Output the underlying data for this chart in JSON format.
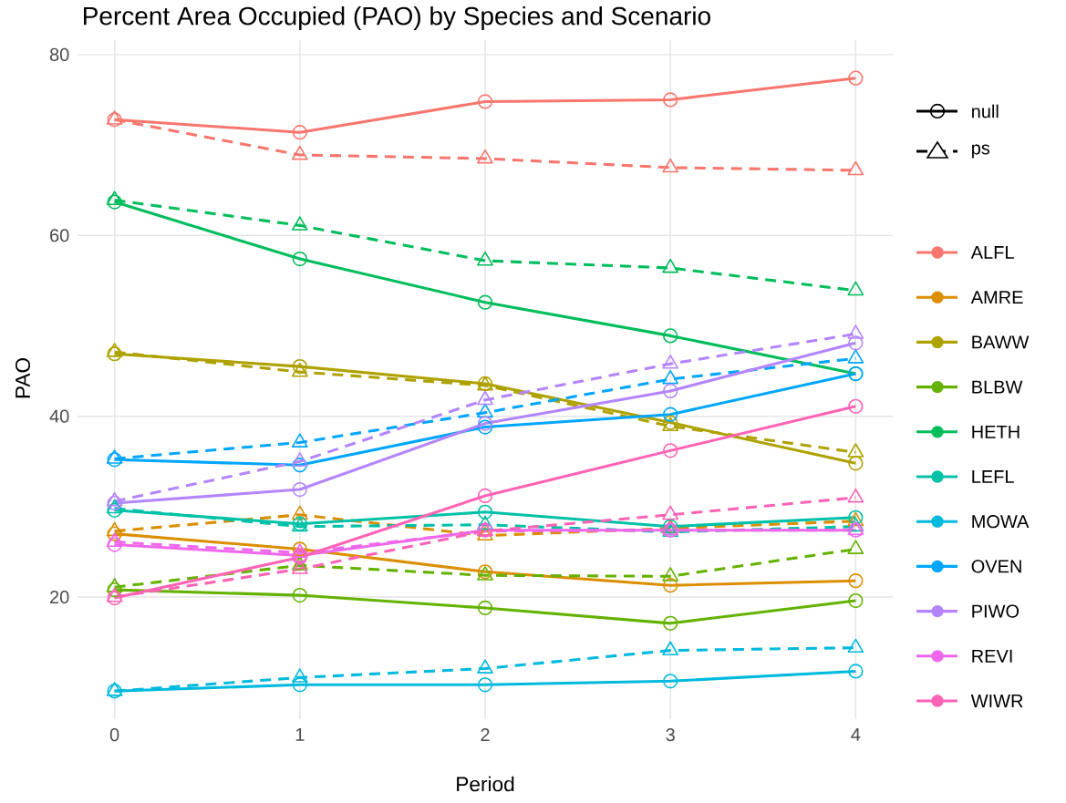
{
  "chart_data": {
    "type": "line",
    "title": "Percent Area Occupied (PAO) by Species and Scenario",
    "xlabel": "Period",
    "ylabel": "PAO",
    "x": [
      0,
      1,
      2,
      3,
      4
    ],
    "xlim": [
      -0.2,
      4.2
    ],
    "ylim": [
      6.5,
      81.6
    ],
    "xticks": [
      0,
      1,
      2,
      3,
      4
    ],
    "yticks": [
      20,
      40,
      60,
      80
    ],
    "grid": true,
    "legend": "right",
    "annotations": [
      "null",
      "ps"
    ],
    "series": [
      {
        "name": "ALFL",
        "color": "#F8766D",
        "line_style": "solid",
        "marker": "circle",
        "values": [
          72.8,
          71.4,
          74.8,
          75.0,
          77.4
        ]
      },
      {
        "color": "#F8766D",
        "line_style": "dashed",
        "marker": "triangle",
        "values": [
          72.8,
          68.9,
          68.5,
          67.5,
          67.2
        ]
      },
      {
        "name": "AMRE",
        "color": "#DB8E00",
        "line_style": "solid",
        "marker": "circle",
        "values": [
          27.0,
          25.3,
          22.8,
          21.3,
          21.8
        ]
      },
      {
        "color": "#DB8E00",
        "line_style": "dashed",
        "marker": "triangle",
        "values": [
          27.3,
          29.1,
          26.8,
          27.6,
          28.4
        ]
      },
      {
        "name": "BAWW",
        "color": "#AEA200",
        "line_style": "solid",
        "marker": "circle",
        "values": [
          46.9,
          45.5,
          43.6,
          39.3,
          34.8
        ]
      },
      {
        "color": "#AEA200",
        "line_style": "dashed",
        "marker": "triangle",
        "values": [
          47.1,
          44.9,
          43.4,
          38.9,
          36.0
        ]
      },
      {
        "name": "BLBW",
        "color": "#64B200",
        "line_style": "solid",
        "marker": "circle",
        "values": [
          20.8,
          20.2,
          18.8,
          17.1,
          19.6
        ]
      },
      {
        "color": "#64B200",
        "line_style": "dashed",
        "marker": "triangle",
        "values": [
          21.1,
          23.5,
          22.4,
          22.3,
          25.3
        ]
      },
      {
        "name": "HETH",
        "color": "#00BD5C",
        "line_style": "solid",
        "marker": "circle",
        "values": [
          63.7,
          57.4,
          52.6,
          48.9,
          44.7
        ]
      },
      {
        "color": "#00BD5C",
        "line_style": "dashed",
        "marker": "triangle",
        "values": [
          63.9,
          61.1,
          57.2,
          56.4,
          53.9
        ]
      },
      {
        "name": "LEFL",
        "color": "#00C1A7",
        "line_style": "solid",
        "marker": "circle",
        "values": [
          29.6,
          28.1,
          29.4,
          27.8,
          28.8
        ]
      },
      {
        "color": "#00C1A7",
        "line_style": "dashed",
        "marker": "triangle",
        "values": [
          29.8,
          27.8,
          28.0,
          27.2,
          27.8
        ]
      },
      {
        "name": "MOWA",
        "color": "#00BADE",
        "line_style": "solid",
        "marker": "circle",
        "values": [
          9.6,
          10.3,
          10.3,
          10.7,
          11.8
        ]
      },
      {
        "color": "#00BADE",
        "line_style": "dashed",
        "marker": "triangle",
        "values": [
          9.6,
          11.1,
          12.1,
          14.1,
          14.4
        ]
      },
      {
        "name": "OVEN",
        "color": "#00A6FF",
        "line_style": "solid",
        "marker": "circle",
        "values": [
          35.2,
          34.6,
          38.8,
          40.2,
          44.7
        ]
      },
      {
        "color": "#00A6FF",
        "line_style": "dashed",
        "marker": "triangle",
        "values": [
          35.3,
          37.1,
          40.4,
          44.1,
          46.4
        ]
      },
      {
        "name": "PIWO",
        "color": "#B385FF",
        "line_style": "solid",
        "marker": "circle",
        "values": [
          30.4,
          31.9,
          39.2,
          42.8,
          48.1
        ]
      },
      {
        "color": "#B385FF",
        "line_style": "dashed",
        "marker": "triangle",
        "values": [
          30.6,
          35.0,
          41.8,
          45.8,
          49.1
        ]
      },
      {
        "name": "REVI",
        "color": "#EF67EB",
        "line_style": "solid",
        "marker": "circle",
        "values": [
          25.8,
          24.6,
          27.4,
          27.4,
          27.4
        ]
      },
      {
        "color": "#EF67EB",
        "line_style": "dashed",
        "marker": "triangle",
        "values": [
          26.1,
          24.9,
          27.3,
          27.4,
          27.4
        ]
      },
      {
        "name": "WIWR",
        "color": "#FF63B6",
        "line_style": "solid",
        "marker": "circle",
        "values": [
          19.9,
          24.4,
          31.2,
          36.2,
          41.1
        ]
      },
      {
        "color": "#FF63B6",
        "line_style": "dashed",
        "marker": "triangle",
        "values": [
          20.0,
          23.1,
          27.3,
          29.1,
          31.0
        ]
      }
    ]
  }
}
